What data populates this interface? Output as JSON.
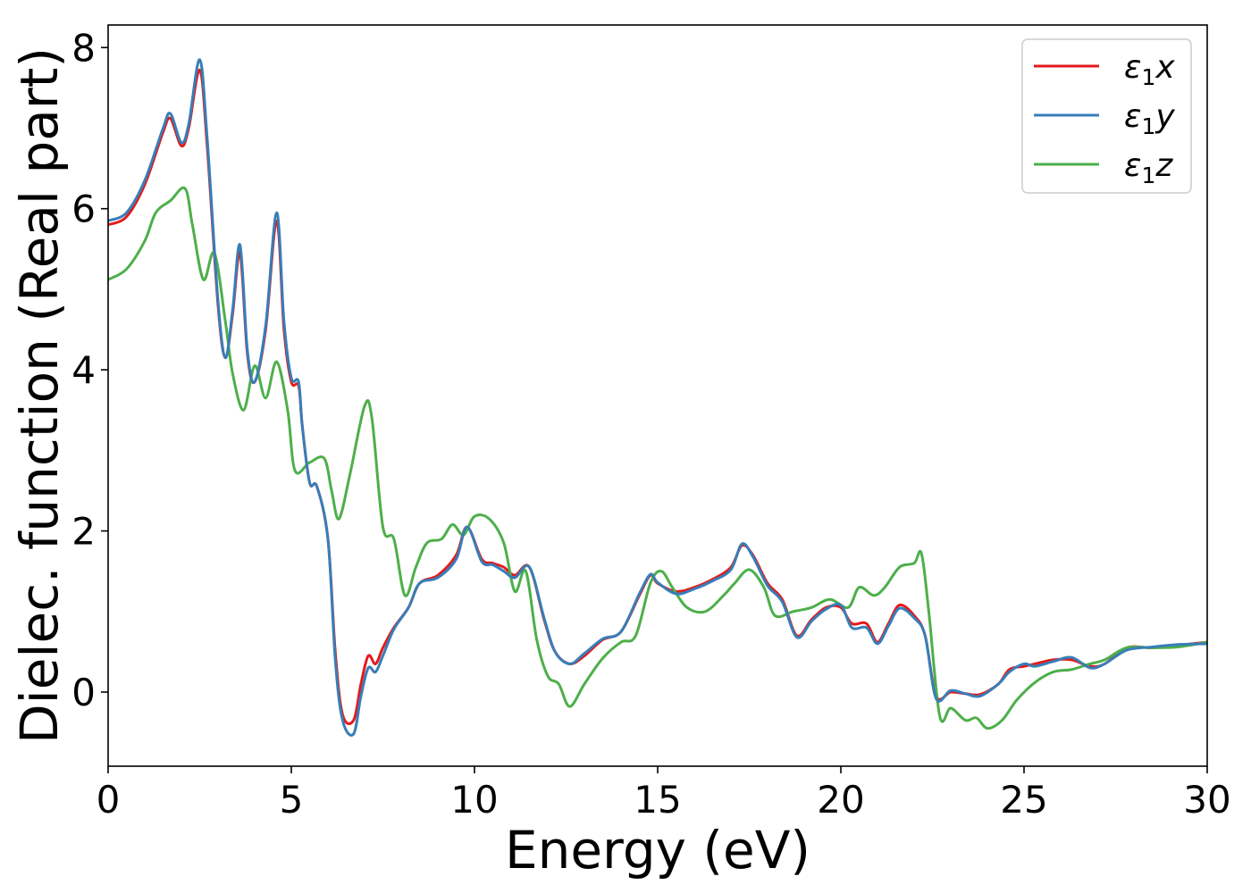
{
  "chart_data": {
    "type": "line",
    "title": "",
    "xlabel": "Energy (eV)",
    "ylabel": "Dielec. function (Real part)",
    "xlim": [
      0,
      30
    ],
    "ylim": [
      -0.92,
      8.28
    ],
    "xticks": [
      0,
      5,
      10,
      15,
      20,
      25,
      30
    ],
    "yticks": [
      0,
      2,
      4,
      6,
      8
    ],
    "grid": false,
    "legend_position": "top-right",
    "series": [
      {
        "name": "ε₁x",
        "legend_main": "ε",
        "legend_sub": "1",
        "legend_suffix": "x",
        "color": "#e41a1c",
        "points": [
          [
            0,
            5.8
          ],
          [
            0.5,
            5.9
          ],
          [
            1.0,
            6.3
          ],
          [
            1.5,
            6.95
          ],
          [
            1.7,
            7.12
          ],
          [
            2.0,
            6.78
          ],
          [
            2.2,
            7.0
          ],
          [
            2.5,
            7.72
          ],
          [
            2.7,
            6.8
          ],
          [
            3.0,
            4.8
          ],
          [
            3.2,
            4.15
          ],
          [
            3.4,
            4.7
          ],
          [
            3.6,
            5.45
          ],
          [
            3.8,
            4.2
          ],
          [
            4.0,
            3.85
          ],
          [
            4.3,
            4.5
          ],
          [
            4.6,
            5.85
          ],
          [
            4.8,
            4.5
          ],
          [
            5.0,
            3.85
          ],
          [
            5.2,
            3.8
          ],
          [
            5.3,
            3.3
          ],
          [
            5.5,
            2.6
          ],
          [
            5.7,
            2.55
          ],
          [
            6.0,
            1.9
          ],
          [
            6.2,
            0.5
          ],
          [
            6.4,
            -0.28
          ],
          [
            6.7,
            -0.35
          ],
          [
            6.9,
            0.1
          ],
          [
            7.1,
            0.45
          ],
          [
            7.3,
            0.35
          ],
          [
            7.5,
            0.55
          ],
          [
            7.8,
            0.8
          ],
          [
            8.2,
            1.05
          ],
          [
            8.5,
            1.35
          ],
          [
            9.0,
            1.45
          ],
          [
            9.5,
            1.7
          ],
          [
            9.8,
            2.05
          ],
          [
            10.2,
            1.65
          ],
          [
            10.5,
            1.6
          ],
          [
            10.8,
            1.55
          ],
          [
            11.1,
            1.45
          ],
          [
            11.5,
            1.55
          ],
          [
            11.9,
            0.9
          ],
          [
            12.2,
            0.5
          ],
          [
            12.6,
            0.35
          ],
          [
            13.0,
            0.45
          ],
          [
            13.5,
            0.65
          ],
          [
            14.0,
            0.75
          ],
          [
            14.5,
            1.2
          ],
          [
            14.8,
            1.45
          ],
          [
            15.0,
            1.35
          ],
          [
            15.5,
            1.25
          ],
          [
            16.0,
            1.3
          ],
          [
            16.5,
            1.4
          ],
          [
            17.0,
            1.55
          ],
          [
            17.3,
            1.82
          ],
          [
            17.6,
            1.7
          ],
          [
            18.0,
            1.35
          ],
          [
            18.4,
            1.15
          ],
          [
            18.8,
            0.7
          ],
          [
            19.2,
            0.9
          ],
          [
            19.6,
            1.05
          ],
          [
            20.0,
            1.05
          ],
          [
            20.3,
            0.85
          ],
          [
            20.7,
            0.85
          ],
          [
            21.0,
            0.62
          ],
          [
            21.3,
            0.85
          ],
          [
            21.6,
            1.08
          ],
          [
            22.0,
            0.95
          ],
          [
            22.3,
            0.7
          ],
          [
            22.6,
            -0.05
          ],
          [
            23.0,
            0.0
          ],
          [
            23.4,
            -0.02
          ],
          [
            23.8,
            -0.03
          ],
          [
            24.3,
            0.1
          ],
          [
            24.6,
            0.28
          ],
          [
            25.0,
            0.32
          ],
          [
            25.3,
            0.35
          ],
          [
            25.8,
            0.4
          ],
          [
            26.3,
            0.4
          ],
          [
            26.8,
            0.32
          ],
          [
            27.2,
            0.35
          ],
          [
            27.8,
            0.55
          ],
          [
            28.5,
            0.55
          ],
          [
            29.2,
            0.58
          ],
          [
            30.0,
            0.62
          ]
        ]
      },
      {
        "name": "ε₁y",
        "legend_main": "ε",
        "legend_sub": "1",
        "legend_suffix": "y",
        "color": "#377eb8",
        "points": [
          [
            0,
            5.85
          ],
          [
            0.5,
            5.95
          ],
          [
            1.0,
            6.35
          ],
          [
            1.5,
            7.0
          ],
          [
            1.7,
            7.18
          ],
          [
            2.0,
            6.82
          ],
          [
            2.2,
            7.05
          ],
          [
            2.5,
            7.85
          ],
          [
            2.7,
            6.9
          ],
          [
            3.0,
            4.85
          ],
          [
            3.2,
            4.15
          ],
          [
            3.4,
            4.75
          ],
          [
            3.6,
            5.55
          ],
          [
            3.8,
            4.25
          ],
          [
            4.0,
            3.85
          ],
          [
            4.3,
            4.55
          ],
          [
            4.6,
            5.95
          ],
          [
            4.8,
            4.6
          ],
          [
            5.0,
            3.9
          ],
          [
            5.2,
            3.85
          ],
          [
            5.3,
            3.3
          ],
          [
            5.5,
            2.6
          ],
          [
            5.7,
            2.55
          ],
          [
            6.0,
            1.9
          ],
          [
            6.2,
            0.4
          ],
          [
            6.4,
            -0.35
          ],
          [
            6.7,
            -0.52
          ],
          [
            6.9,
            -0.05
          ],
          [
            7.1,
            0.3
          ],
          [
            7.3,
            0.25
          ],
          [
            7.5,
            0.45
          ],
          [
            7.8,
            0.78
          ],
          [
            8.2,
            1.05
          ],
          [
            8.5,
            1.35
          ],
          [
            9.0,
            1.42
          ],
          [
            9.5,
            1.65
          ],
          [
            9.8,
            2.05
          ],
          [
            10.2,
            1.62
          ],
          [
            10.5,
            1.58
          ],
          [
            10.8,
            1.5
          ],
          [
            11.1,
            1.42
          ],
          [
            11.5,
            1.55
          ],
          [
            11.9,
            0.92
          ],
          [
            12.2,
            0.5
          ],
          [
            12.6,
            0.35
          ],
          [
            13.0,
            0.48
          ],
          [
            13.5,
            0.66
          ],
          [
            14.0,
            0.75
          ],
          [
            14.5,
            1.22
          ],
          [
            14.8,
            1.46
          ],
          [
            15.0,
            1.36
          ],
          [
            15.5,
            1.22
          ],
          [
            16.0,
            1.28
          ],
          [
            16.5,
            1.38
          ],
          [
            17.0,
            1.52
          ],
          [
            17.3,
            1.84
          ],
          [
            17.6,
            1.68
          ],
          [
            18.0,
            1.32
          ],
          [
            18.4,
            1.12
          ],
          [
            18.8,
            0.68
          ],
          [
            19.2,
            0.88
          ],
          [
            19.6,
            1.03
          ],
          [
            20.0,
            1.08
          ],
          [
            20.3,
            0.8
          ],
          [
            20.7,
            0.8
          ],
          [
            21.0,
            0.6
          ],
          [
            21.3,
            0.82
          ],
          [
            21.6,
            1.04
          ],
          [
            22.0,
            0.92
          ],
          [
            22.3,
            0.7
          ],
          [
            22.6,
            -0.08
          ],
          [
            23.0,
            0.02
          ],
          [
            23.4,
            -0.02
          ],
          [
            23.8,
            -0.05
          ],
          [
            24.3,
            0.1
          ],
          [
            24.6,
            0.25
          ],
          [
            25.0,
            0.35
          ],
          [
            25.3,
            0.32
          ],
          [
            25.8,
            0.38
          ],
          [
            26.3,
            0.43
          ],
          [
            26.8,
            0.3
          ],
          [
            27.2,
            0.35
          ],
          [
            27.8,
            0.52
          ],
          [
            28.5,
            0.56
          ],
          [
            29.2,
            0.59
          ],
          [
            30.0,
            0.6
          ]
        ]
      },
      {
        "name": "ε₁z",
        "legend_main": "ε",
        "legend_sub": "1",
        "legend_suffix": "z",
        "color": "#4daf4a",
        "points": [
          [
            0,
            5.12
          ],
          [
            0.5,
            5.25
          ],
          [
            1.0,
            5.6
          ],
          [
            1.3,
            5.95
          ],
          [
            1.7,
            6.1
          ],
          [
            2.1,
            6.25
          ],
          [
            2.3,
            5.8
          ],
          [
            2.6,
            5.12
          ],
          [
            2.9,
            5.45
          ],
          [
            3.2,
            4.6
          ],
          [
            3.4,
            3.95
          ],
          [
            3.7,
            3.5
          ],
          [
            4.0,
            4.05
          ],
          [
            4.3,
            3.65
          ],
          [
            4.6,
            4.1
          ],
          [
            4.9,
            3.5
          ],
          [
            5.1,
            2.75
          ],
          [
            5.5,
            2.85
          ],
          [
            5.9,
            2.9
          ],
          [
            6.1,
            2.5
          ],
          [
            6.3,
            2.15
          ],
          [
            6.6,
            2.7
          ],
          [
            7.0,
            3.55
          ],
          [
            7.2,
            3.4
          ],
          [
            7.5,
            2.05
          ],
          [
            7.8,
            1.9
          ],
          [
            8.1,
            1.2
          ],
          [
            8.4,
            1.55
          ],
          [
            8.7,
            1.85
          ],
          [
            9.1,
            1.9
          ],
          [
            9.4,
            2.08
          ],
          [
            9.7,
            1.95
          ],
          [
            10.0,
            2.18
          ],
          [
            10.4,
            2.15
          ],
          [
            10.8,
            1.85
          ],
          [
            11.1,
            1.25
          ],
          [
            11.4,
            1.5
          ],
          [
            11.7,
            0.65
          ],
          [
            12.0,
            0.2
          ],
          [
            12.3,
            0.1
          ],
          [
            12.6,
            -0.18
          ],
          [
            13.0,
            0.1
          ],
          [
            13.5,
            0.42
          ],
          [
            14.0,
            0.62
          ],
          [
            14.4,
            0.7
          ],
          [
            14.8,
            1.35
          ],
          [
            15.1,
            1.5
          ],
          [
            15.4,
            1.3
          ],
          [
            15.8,
            1.05
          ],
          [
            16.3,
            1.0
          ],
          [
            16.8,
            1.2
          ],
          [
            17.1,
            1.35
          ],
          [
            17.5,
            1.52
          ],
          [
            17.9,
            1.3
          ],
          [
            18.2,
            0.95
          ],
          [
            18.7,
            1.0
          ],
          [
            19.2,
            1.05
          ],
          [
            19.7,
            1.15
          ],
          [
            20.2,
            1.05
          ],
          [
            20.5,
            1.3
          ],
          [
            20.9,
            1.2
          ],
          [
            21.2,
            1.3
          ],
          [
            21.6,
            1.55
          ],
          [
            22.0,
            1.6
          ],
          [
            22.2,
            1.72
          ],
          [
            22.4,
            1.0
          ],
          [
            22.7,
            -0.3
          ],
          [
            23.0,
            -0.2
          ],
          [
            23.4,
            -0.35
          ],
          [
            23.7,
            -0.32
          ],
          [
            24.0,
            -0.45
          ],
          [
            24.4,
            -0.35
          ],
          [
            24.8,
            -0.1
          ],
          [
            25.3,
            0.12
          ],
          [
            25.8,
            0.25
          ],
          [
            26.3,
            0.28
          ],
          [
            26.8,
            0.35
          ],
          [
            27.2,
            0.4
          ],
          [
            27.8,
            0.55
          ],
          [
            28.5,
            0.55
          ],
          [
            29.2,
            0.56
          ],
          [
            30.0,
            0.62
          ]
        ]
      }
    ]
  }
}
